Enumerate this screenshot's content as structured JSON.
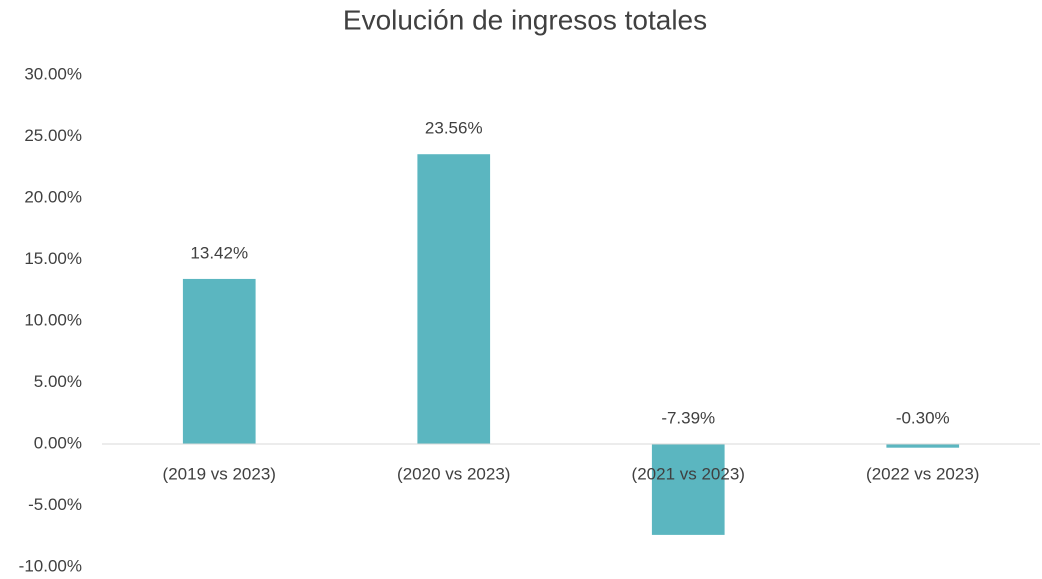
{
  "chart_data": {
    "type": "bar",
    "title": "Evolución de ingresos totales",
    "categories": [
      "(2019 vs 2023)",
      "(2020 vs 2023)",
      "(2021 vs 2023)",
      "(2022 vs 2023)"
    ],
    "values": [
      13.42,
      23.56,
      -7.39,
      -0.3
    ],
    "value_labels": [
      "13.42%",
      "23.56%",
      "-7.39%",
      "-0.30%"
    ],
    "color": "#5bb6c0",
    "ylim": [
      -10,
      30
    ],
    "yticks": [
      {
        "value": -10,
        "label": "-10.00%"
      },
      {
        "value": -5,
        "label": "-5.00%"
      },
      {
        "value": 0,
        "label": "0.00%"
      },
      {
        "value": 5,
        "label": "5.00%"
      },
      {
        "value": 10,
        "label": "10.00%"
      },
      {
        "value": 15,
        "label": "15.00%"
      },
      {
        "value": 20,
        "label": "20.00%"
      },
      {
        "value": 25,
        "label": "25.00%"
      },
      {
        "value": 30,
        "label": "30.00%"
      }
    ],
    "grid": false
  }
}
